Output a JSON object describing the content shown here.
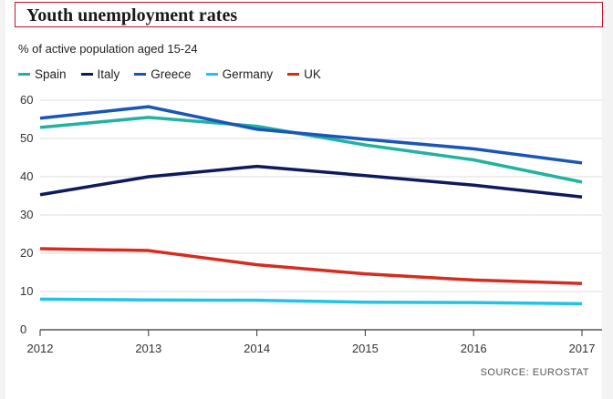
{
  "header": {
    "title": "Youth unemployment rates",
    "subtitle": "% of active population aged 15-24",
    "source": "SOURCE: EUROSTAT"
  },
  "chart_data": {
    "type": "line",
    "title": "Youth unemployment rates",
    "subtitle": "% of active population aged 15-24",
    "xlabel": "",
    "ylabel": "",
    "x": [
      2012,
      2013,
      2014,
      2015,
      2016,
      2017
    ],
    "ylim": [
      0,
      60
    ],
    "yticks": [
      0,
      10,
      20,
      30,
      40,
      50,
      60
    ],
    "grid": "horizontal",
    "legend": "top-left",
    "series": [
      {
        "name": "Spain",
        "color": "#1fb3a0",
        "values": [
          52.9,
          55.5,
          53.2,
          48.3,
          44.4,
          38.6
        ]
      },
      {
        "name": "Italy",
        "color": "#0d1a5c",
        "values": [
          35.3,
          40.0,
          42.7,
          40.3,
          37.8,
          34.7
        ]
      },
      {
        "name": "Greece",
        "color": "#1a56b8",
        "values": [
          55.3,
          58.3,
          52.4,
          49.8,
          47.3,
          43.6
        ]
      },
      {
        "name": "Germany",
        "color": "#22c4e6",
        "values": [
          8.0,
          7.8,
          7.7,
          7.2,
          7.1,
          6.8
        ]
      },
      {
        "name": "UK",
        "color": "#d62b1f",
        "values": [
          21.2,
          20.7,
          17.0,
          14.6,
          13.0,
          12.1
        ]
      }
    ]
  }
}
